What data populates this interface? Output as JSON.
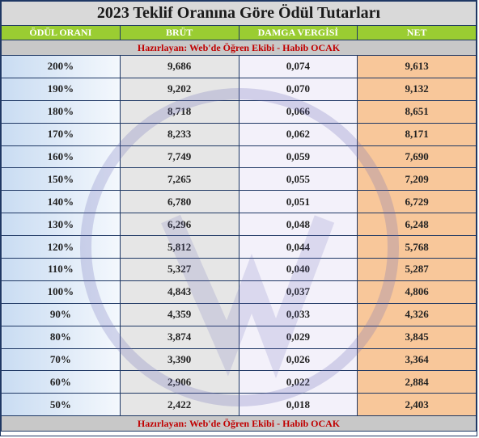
{
  "title": "2023 Teklif Oranına Göre Ödül Tutarları",
  "table": {
    "headers": [
      "ÖDÜL ORANI",
      "BRÜT",
      "DAMGA VERGİSİ",
      "NET"
    ],
    "credit_top": "Hazırlayan: Web'de Öğren Ekibi - Habib OCAK",
    "rows": [
      [
        "200%",
        "9,686",
        "0,074",
        "9,613"
      ],
      [
        "190%",
        "9,202",
        "0,070",
        "9,132"
      ],
      [
        "180%",
        "8,718",
        "0,066",
        "8,651"
      ],
      [
        "170%",
        "8,233",
        "0,062",
        "8,171"
      ],
      [
        "160%",
        "7,749",
        "0,059",
        "7,690"
      ],
      [
        "150%",
        "7,265",
        "0,055",
        "7,209"
      ],
      [
        "140%",
        "6,780",
        "0,051",
        "6,729"
      ],
      [
        "130%",
        "6,296",
        "0,048",
        "6,248"
      ],
      [
        "120%",
        "5,812",
        "0,044",
        "5,768"
      ],
      [
        "110%",
        "5,327",
        "0,040",
        "5,287"
      ],
      [
        "100%",
        "4,843",
        "0,037",
        "4,806"
      ],
      [
        "90%",
        "4,359",
        "0,033",
        "4,326"
      ],
      [
        "80%",
        "3,874",
        "0,029",
        "3,845"
      ],
      [
        "70%",
        "3,390",
        "0,026",
        "3,364"
      ],
      [
        "60%",
        "2,906",
        "0,022",
        "2,884"
      ],
      [
        "50%",
        "2,422",
        "0,018",
        "2,403"
      ]
    ],
    "credit_bottom": "Hazırlayan: Web'de Öğren Ekibi - Habib OCAK"
  }
}
